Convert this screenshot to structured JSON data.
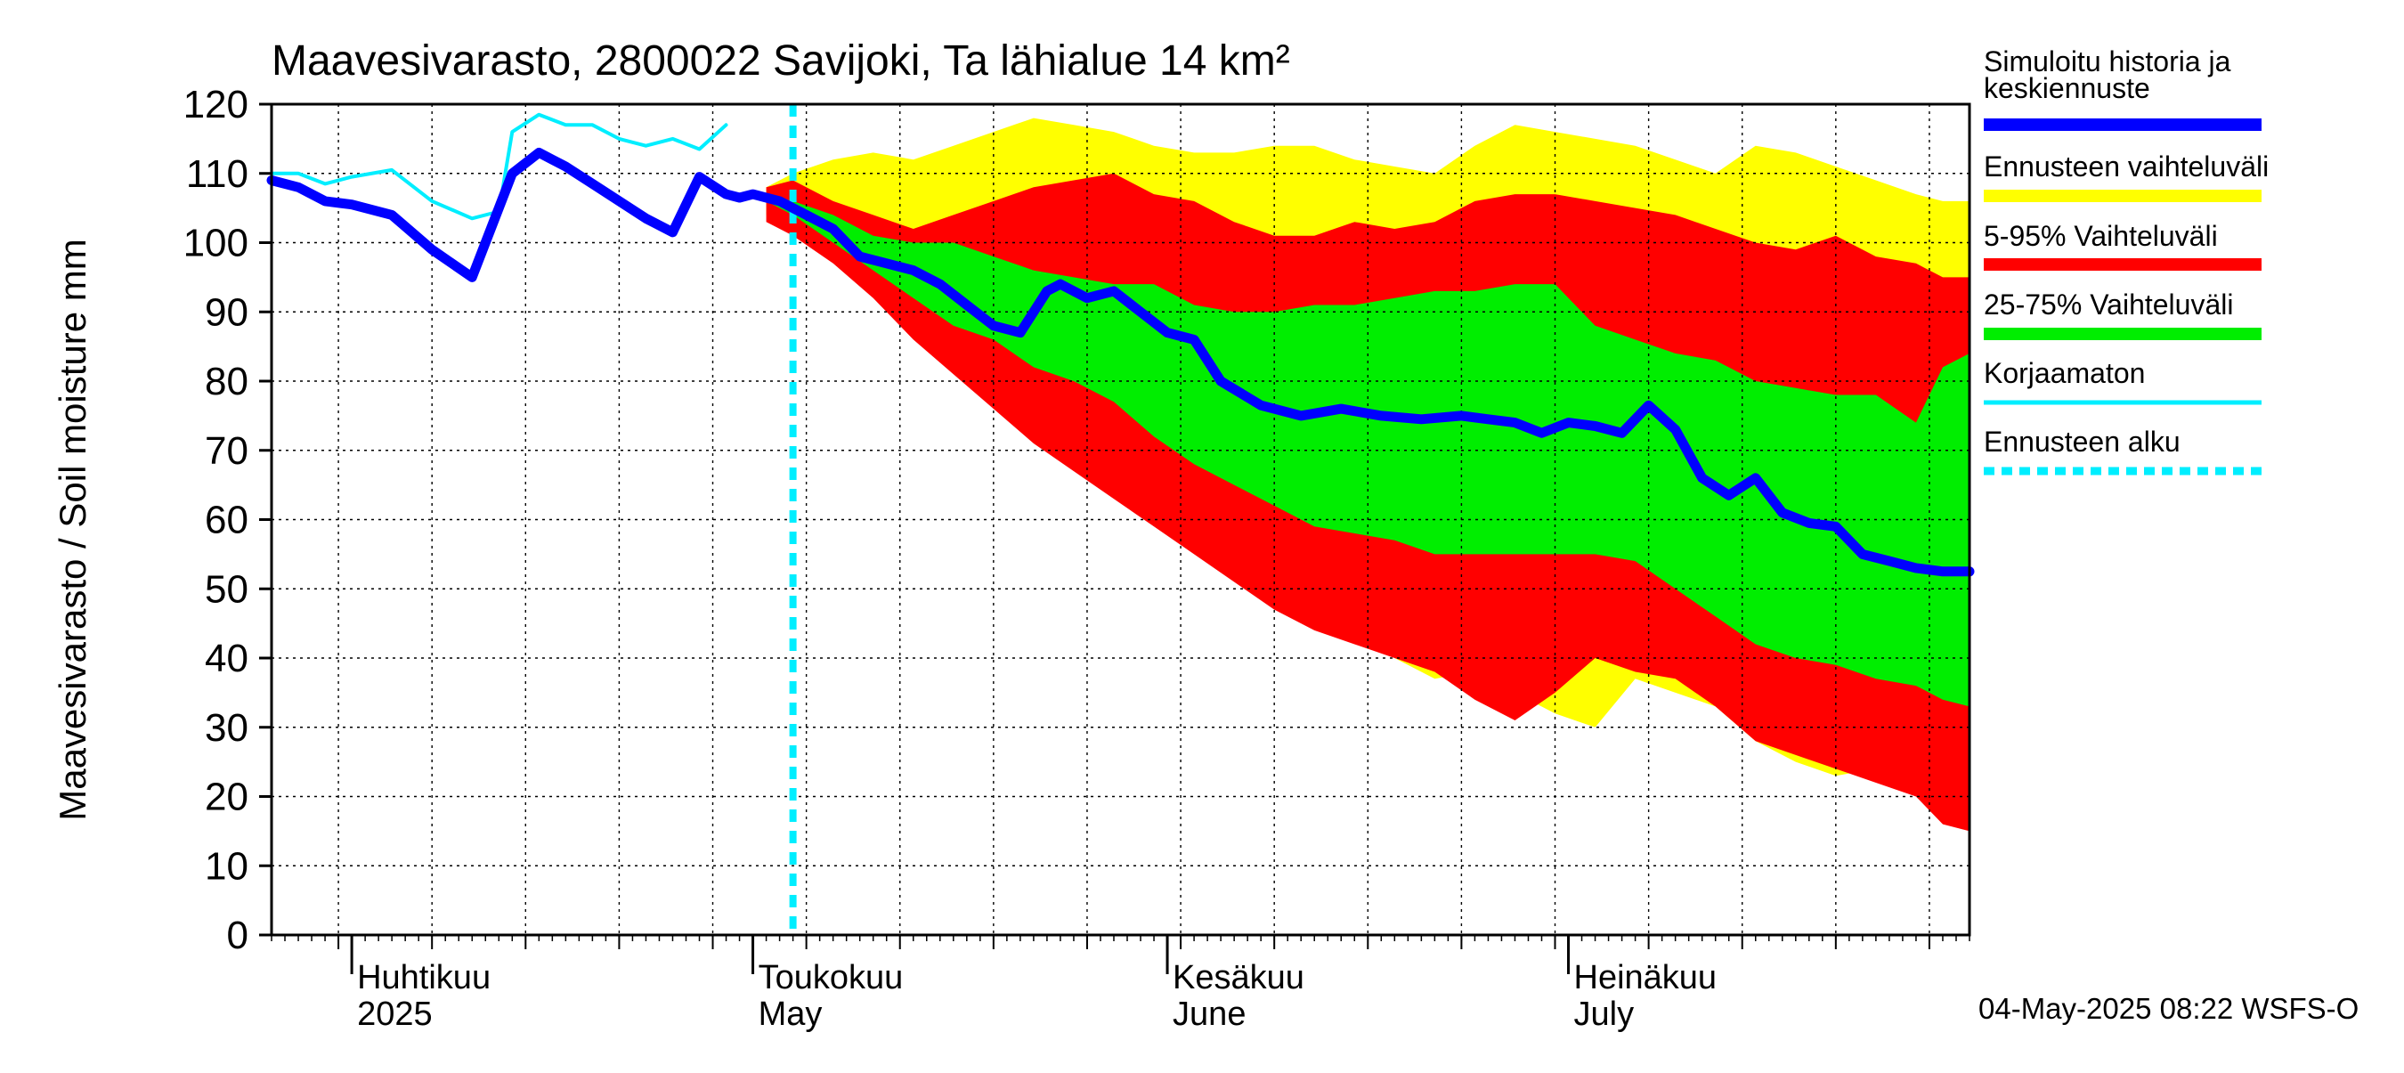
{
  "chart_data": {
    "type": "area",
    "title": "Maavesivarasto, 2800022 Savijoki, Ta lähialue 14 km²",
    "ylabel": "Maavesivarasto / Soil moisture   mm",
    "ylim": [
      0,
      120
    ],
    "yticks": [
      "0",
      "10",
      "20",
      "30",
      "40",
      "50",
      "60",
      "70",
      "80",
      "90",
      "100",
      "110",
      "120"
    ],
    "xlim": [
      "2025-03-26",
      "2025-07-31"
    ],
    "month_labels": [
      {
        "date": "2025-04-01",
        "fi": "Huhtikuu",
        "en": "2025"
      },
      {
        "date": "2025-05-01",
        "fi": "Toukokuu",
        "en": "May"
      },
      {
        "date": "2025-06-01",
        "fi": "Kesäkuu",
        "en": "June"
      },
      {
        "date": "2025-07-01",
        "fi": "Heinäkuu",
        "en": "July"
      }
    ],
    "forecast_start": "2025-05-04",
    "grid": true,
    "legend_position": "right",
    "footer": "04-May-2025 08:22 WSFS-O",
    "colors": {
      "history": "#0000ff",
      "range_full": "#ffff00",
      "range_5_95": "#ff0000",
      "range_25_75": "#00ee00",
      "uncorrected": "#00eeff",
      "forecast_start": "#00eeff"
    },
    "legend": [
      {
        "label": "Simuloitu historia ja keskiennuste",
        "key": "history"
      },
      {
        "label": "Ennusteen vaihteluväli",
        "key": "range_full"
      },
      {
        "label": "5-95% Vaihteluväli",
        "key": "range_5_95"
      },
      {
        "label": "25-75% Vaihteluväli",
        "key": "range_25_75"
      },
      {
        "label": "Korjaamaton",
        "key": "uncorrected"
      },
      {
        "label": "Ennusteen alku",
        "key": "forecast_start"
      }
    ],
    "series": [
      {
        "name": "Simuloitu historia ja keskiennuste",
        "x": [
          "2025-03-26",
          "2025-03-28",
          "2025-03-30",
          "2025-04-01",
          "2025-04-04",
          "2025-04-07",
          "2025-04-10",
          "2025-04-13",
          "2025-04-15",
          "2025-04-16",
          "2025-04-17",
          "2025-04-19",
          "2025-04-23",
          "2025-04-25",
          "2025-04-27",
          "2025-04-29",
          "2025-04-30",
          "2025-05-01",
          "2025-05-03",
          "2025-05-05",
          "2025-05-07",
          "2025-05-09",
          "2025-05-11",
          "2025-05-13",
          "2025-05-15",
          "2025-05-17",
          "2025-05-19",
          "2025-05-21",
          "2025-05-23",
          "2025-05-24",
          "2025-05-26",
          "2025-05-28",
          "2025-05-30",
          "2025-06-01",
          "2025-06-03",
          "2025-06-05",
          "2025-06-08",
          "2025-06-11",
          "2025-06-14",
          "2025-06-17",
          "2025-06-20",
          "2025-06-23",
          "2025-06-25",
          "2025-06-27",
          "2025-06-29",
          "2025-07-01",
          "2025-07-03",
          "2025-07-05",
          "2025-07-07",
          "2025-07-09",
          "2025-07-11",
          "2025-07-13",
          "2025-07-15",
          "2025-07-17",
          "2025-07-19",
          "2025-07-21",
          "2025-07-23",
          "2025-07-25",
          "2025-07-27",
          "2025-07-29",
          "2025-07-31"
        ],
        "y": [
          109,
          108,
          106,
          105.5,
          104,
          99,
          95,
          110,
          113,
          112,
          111,
          108.5,
          103.5,
          101.5,
          109.5,
          107,
          106.5,
          107,
          106,
          104,
          102,
          98,
          97,
          96,
          94,
          91,
          88,
          87,
          93,
          94,
          92,
          93,
          90,
          87,
          86,
          80,
          76.5,
          75,
          76,
          75,
          74.5,
          75,
          74.5,
          74,
          72.5,
          74,
          73.5,
          72.5,
          76.5,
          73,
          66,
          63.5,
          66,
          61,
          59.5,
          59,
          55,
          54,
          53,
          52.5,
          52.5
        ]
      },
      {
        "name": "Korjaamaton",
        "x": [
          "2025-03-26",
          "2025-03-28",
          "2025-03-30",
          "2025-04-01",
          "2025-04-04",
          "2025-04-07",
          "2025-04-10",
          "2025-04-12",
          "2025-04-13",
          "2025-04-15",
          "2025-04-17",
          "2025-04-19",
          "2025-04-21",
          "2025-04-23",
          "2025-04-25",
          "2025-04-27",
          "2025-04-29"
        ],
        "y": [
          110,
          110,
          108.5,
          109.5,
          110.5,
          106,
          103.5,
          104.5,
          116,
          118.5,
          117,
          117,
          115,
          114,
          115,
          113.5,
          117
        ]
      }
    ],
    "bands": {
      "x": [
        "2025-05-02",
        "2025-05-04",
        "2025-05-07",
        "2025-05-10",
        "2025-05-13",
        "2025-05-16",
        "2025-05-19",
        "2025-05-22",
        "2025-05-25",
        "2025-05-28",
        "2025-05-31",
        "2025-06-03",
        "2025-06-06",
        "2025-06-09",
        "2025-06-12",
        "2025-06-15",
        "2025-06-18",
        "2025-06-21",
        "2025-06-24",
        "2025-06-27",
        "2025-06-30",
        "2025-07-03",
        "2025-07-06",
        "2025-07-09",
        "2025-07-12",
        "2025-07-15",
        "2025-07-18",
        "2025-07-21",
        "2025-07-24",
        "2025-07-27",
        "2025-07-29",
        "2025-07-31"
      ],
      "full_min": [
        104,
        102,
        98,
        94,
        88,
        83,
        80,
        78,
        72,
        69,
        63,
        57,
        53,
        50,
        46,
        43,
        40,
        37,
        38,
        35,
        32,
        30,
        37,
        35,
        33,
        28,
        25,
        23,
        24,
        22,
        18,
        15
      ],
      "full_max": [
        108,
        110,
        112,
        113,
        112,
        114,
        116,
        118,
        117,
        116,
        114,
        113,
        113,
        114,
        114,
        112,
        111,
        110,
        114,
        117,
        116,
        115,
        114,
        112,
        110,
        114,
        113,
        111,
        109,
        107,
        106,
        106
      ],
      "p5": [
        103,
        101,
        97,
        92,
        86,
        81,
        76,
        71,
        67,
        63,
        59,
        55,
        51,
        47,
        44,
        42,
        40,
        38,
        34,
        31,
        35,
        40,
        38,
        37,
        33,
        28,
        26,
        24,
        22,
        20,
        16,
        15
      ],
      "p95": [
        108,
        109,
        106,
        104,
        102,
        104,
        106,
        108,
        109,
        110,
        107,
        106,
        103,
        101,
        101,
        103,
        102,
        103,
        106,
        107,
        107,
        106,
        105,
        104,
        102,
        100,
        99,
        101,
        98,
        97,
        95,
        95
      ],
      "p25": [
        106,
        104,
        100,
        96,
        92,
        88,
        86,
        82,
        80,
        77,
        72,
        68,
        65,
        62,
        59,
        58,
        57,
        55,
        55,
        55,
        55,
        55,
        54,
        50,
        46,
        42,
        40,
        39,
        37,
        36,
        34,
        33
      ],
      "p75": [
        107,
        106,
        104,
        101,
        100,
        100,
        98,
        96,
        95,
        94,
        94,
        91,
        90,
        90,
        91,
        91,
        92,
        93,
        93,
        94,
        94,
        88,
        86,
        84,
        83,
        80,
        79,
        78,
        78,
        74,
        82,
        84
      ]
    }
  }
}
